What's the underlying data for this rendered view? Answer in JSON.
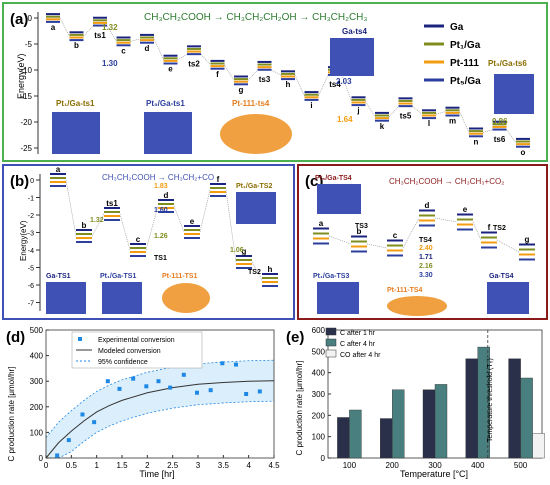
{
  "colors": {
    "ga": "#1a237e",
    "pt1": "#7f8c1e",
    "pt111": "#f39c12",
    "pt5": "#2c3e9e",
    "teal": "#4a7f7f",
    "dark": "#2a2f4a",
    "light": "#f2f2f2",
    "blue": "#1e88e5"
  },
  "panel_a": {
    "label": "(a)",
    "reaction": "CH₃CH₂COOH → CH₃CH₂CH₂OH → CH₃CH₂CH₃",
    "ylabel": "Energy(eV)",
    "yticks": [
      "0",
      "-5",
      "-10",
      "-15",
      "-20",
      "-25"
    ],
    "legend": [
      "Ga",
      "Pt₁/Ga",
      "Pt-111",
      "Pt₅/Ga"
    ],
    "states": [
      "a",
      "b",
      "ts1",
      "c",
      "d",
      "e",
      "ts2",
      "f",
      "g",
      "ts3",
      "h",
      "i",
      "ts4",
      "j",
      "k",
      "ts5",
      "l",
      "m",
      "n",
      "ts6",
      "o"
    ],
    "ann": [
      "1.32",
      "1.30",
      "2.03",
      "1.64",
      "0.86"
    ],
    "thumbs": [
      "Pt₁/Ga-ts1",
      "Pt₅/Ga-ts1",
      "Pt-111-ts4",
      "Ga-ts4",
      "Pt₅/Ga-ts6"
    ]
  },
  "panel_b": {
    "label": "(b)",
    "reaction": "CH₃CH₂COOH → CH₃CH₂+CO",
    "ylabel": "Energy(eV)",
    "yticks": [
      "0",
      "-1",
      "-2",
      "-3",
      "-4",
      "-5",
      "-6",
      "-7"
    ],
    "states": [
      "a",
      "b",
      "ts1",
      "c",
      "d",
      "e",
      "f",
      "TS1",
      "TS2",
      "g",
      "h"
    ],
    "ann": [
      "1.32",
      "1.83",
      "1.60",
      "1.26",
      "1.06"
    ],
    "thumbs": [
      "Ga-TS1",
      "Pt₁/Ga-TS1",
      "Pt-111-TS1",
      "Pt₁/Ga-TS2"
    ]
  },
  "panel_c": {
    "label": "(c)",
    "reaction": "CH₃CH₂COOH → CH₃CH₃+CO₂",
    "states": [
      "a",
      "b",
      "c",
      "d",
      "e",
      "f",
      "g",
      "TS3",
      "TS4",
      "TS2"
    ],
    "ann": [
      "2.40",
      "1.71",
      "2.16",
      "3.30"
    ],
    "thumbs": [
      "Pt₅/Ga-TS4",
      "Pt₁/Ga-TS3",
      "Pt-111-TS4",
      "Ga-TS4"
    ]
  },
  "panel_d": {
    "label": "(d)",
    "legend": [
      "Experimental conversion",
      "Modeled conversion",
      "95% confidence"
    ]
  },
  "panel_e": {
    "label": "(e)",
    "threshold_label": "Temperature threshold (T₀)"
  },
  "chart_data": [
    {
      "type": "scatter",
      "id": "d",
      "xlabel": "Time [hr]",
      "ylabel": "C production rate [μmol/hr]",
      "xlim": [
        0,
        4.5
      ],
      "ylim": [
        0,
        500
      ],
      "xticks": [
        0,
        0.5,
        1,
        1.5,
        2,
        2.5,
        3,
        3.5,
        4,
        4.5
      ],
      "yticks": [
        0,
        100,
        200,
        300,
        400,
        500
      ],
      "series": [
        {
          "name": "Experimental conversion",
          "x": [
            0.22,
            0.45,
            0.72,
            0.95,
            1.22,
            1.45,
            1.72,
            1.98,
            2.22,
            2.45,
            2.72,
            2.98,
            3.25,
            3.48,
            3.75,
            3.95,
            4.22
          ],
          "y": [
            10,
            70,
            170,
            140,
            300,
            270,
            310,
            280,
            300,
            275,
            325,
            255,
            265,
            370,
            365,
            250,
            260
          ]
        },
        {
          "name": "Modeled conversion",
          "x": [
            0,
            0.25,
            0.5,
            0.75,
            1,
            1.25,
            1.5,
            2,
            2.5,
            3,
            3.5,
            4,
            4.5
          ],
          "y": [
            0,
            60,
            105,
            145,
            180,
            205,
            225,
            255,
            275,
            288,
            295,
            300,
            302
          ]
        }
      ],
      "band": {
        "name": "95% confidence",
        "x": [
          0,
          0.25,
          0.5,
          0.75,
          1,
          1.25,
          1.5,
          2,
          2.5,
          3,
          3.5,
          4,
          4.5
        ],
        "lo": [
          -80,
          -20,
          25,
          65,
          100,
          125,
          145,
          175,
          195,
          208,
          215,
          220,
          222
        ],
        "hi": [
          80,
          140,
          185,
          225,
          260,
          285,
          305,
          335,
          355,
          368,
          375,
          380,
          382
        ]
      }
    },
    {
      "type": "bar",
      "id": "e",
      "xlabel": "Temperature [°C]",
      "ylabel": "C production rate [μmol/hr]",
      "ylim": [
        0,
        600
      ],
      "yticks": [
        0,
        100,
        200,
        300,
        400,
        500,
        600
      ],
      "categories": [
        "100",
        "200",
        "300",
        "400",
        "500"
      ],
      "series": [
        {
          "name": "C after 1 hr",
          "values": [
            190,
            185,
            320,
            465,
            465
          ]
        },
        {
          "name": "C after 4 hr",
          "values": [
            225,
            320,
            345,
            520,
            375
          ]
        },
        {
          "name": "CO after 4 hr",
          "values": [
            0,
            0,
            0,
            0,
            115
          ]
        }
      ]
    }
  ]
}
